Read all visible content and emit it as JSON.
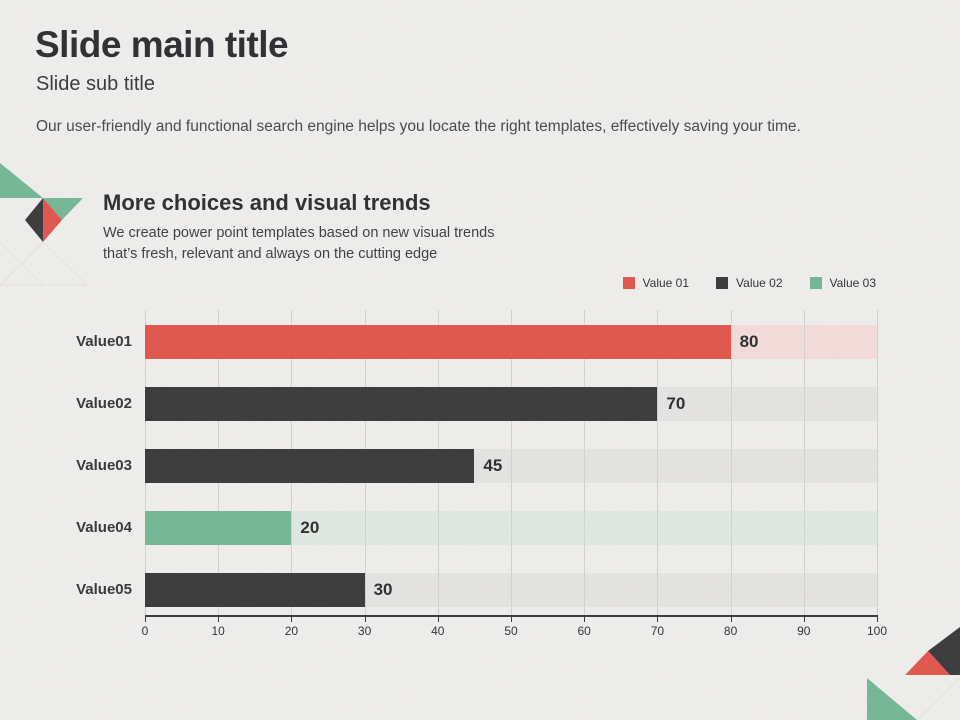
{
  "slide": {
    "title": "Slide main title",
    "subtitle": "Slide sub title",
    "description": "Our user-friendly and functional search engine helps you locate the right templates, effectively saving your time."
  },
  "section": {
    "heading": "More choices and visual trends",
    "body_line1": "We create power point templates based on new visual trends",
    "body_line2": "that’s fresh, relevant and always on the cutting edge"
  },
  "legend": [
    {
      "label": "Value 01",
      "color": "#e0564c"
    },
    {
      "label": "Value 02",
      "color": "#3b3b3d"
    },
    {
      "label": "Value 03",
      "color": "#74b795"
    }
  ],
  "chart_data": {
    "type": "bar",
    "orientation": "horizontal",
    "title": "More choices and visual trends",
    "categories": [
      "Value01",
      "Value02",
      "Value03",
      "Value04",
      "Value05"
    ],
    "values": [
      80,
      70,
      45,
      20,
      30
    ],
    "bar_colors": [
      "#e0564c",
      "#3b3b3d",
      "#3b3b3d",
      "#74b795",
      "#3b3b3d"
    ],
    "track_colors": [
      "#f3dbd8",
      "#e4e3e1",
      "#e4e3e1",
      "#dfe8e0",
      "#e4e3e1"
    ],
    "xlim": [
      0,
      100
    ],
    "x_ticks": [
      0,
      10,
      20,
      30,
      40,
      50,
      60,
      70,
      80,
      90,
      100
    ],
    "grid": true,
    "legend_position": "top-right"
  },
  "colors": {
    "background": "#efeeec",
    "accent_red": "#e0564c",
    "accent_dark": "#3b3b3d",
    "accent_green": "#74b795",
    "gridline": "#d2d1cf",
    "axis": "#3a3a3c"
  }
}
